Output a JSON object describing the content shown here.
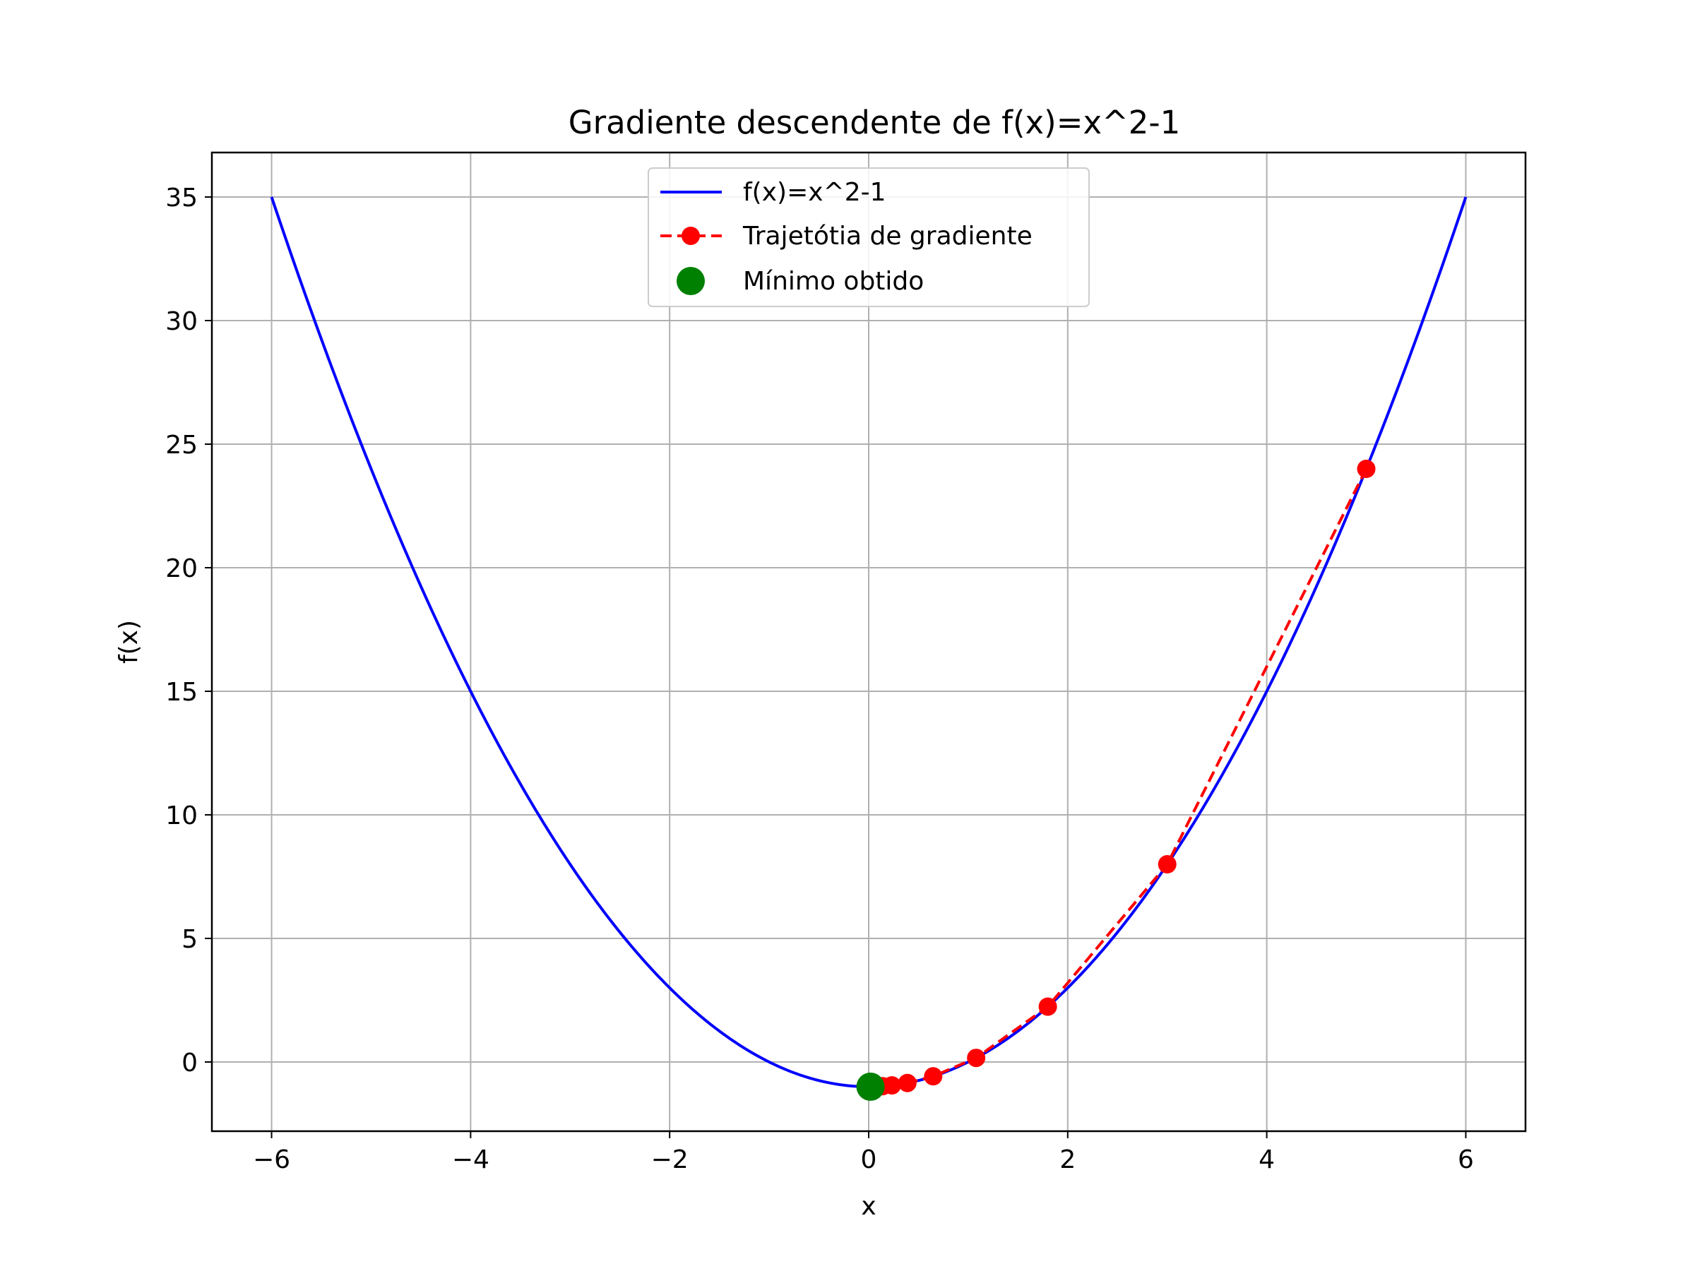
{
  "chart_data": {
    "type": "line",
    "title": "Gradiente descendente de f(x)=x^2-1",
    "xlabel": "x",
    "ylabel": "f(x)",
    "xlim": [
      -6.6,
      6.6
    ],
    "ylim": [
      -2.8,
      36.8
    ],
    "xticks": [
      -6,
      -4,
      -2,
      0,
      2,
      4,
      6
    ],
    "yticks": [
      0,
      5,
      10,
      15,
      20,
      25,
      30,
      35
    ],
    "xtick_labels": [
      "−6",
      "−4",
      "−2",
      "0",
      "2",
      "4",
      "6"
    ],
    "ytick_labels": [
      "0",
      "5",
      "10",
      "15",
      "20",
      "25",
      "30",
      "35"
    ],
    "grid": true,
    "legend_position": "top-center",
    "series": [
      {
        "name": "f(x)=x^2-1",
        "kind": "curve",
        "function": "x^2-1",
        "x_range": [
          -6,
          6
        ],
        "color": "#0000ff"
      },
      {
        "name": "Trajetótia de gradiente",
        "kind": "dashed-markers",
        "color": "#ff0000",
        "x": [
          5.0,
          3.0,
          1.8,
          1.08,
          0.648,
          0.389,
          0.233,
          0.14,
          0.084,
          0.05,
          0.03,
          0.018
        ],
        "y": [
          24.0,
          8.0,
          2.24,
          0.166,
          -0.58,
          -0.849,
          -0.946,
          -0.98,
          -0.993,
          -0.997,
          -0.999,
          -1.0
        ]
      },
      {
        "name": "Mínimo obtido",
        "kind": "marker",
        "color": "#008000",
        "x": [
          0.018
        ],
        "y": [
          -1.0
        ]
      }
    ]
  }
}
